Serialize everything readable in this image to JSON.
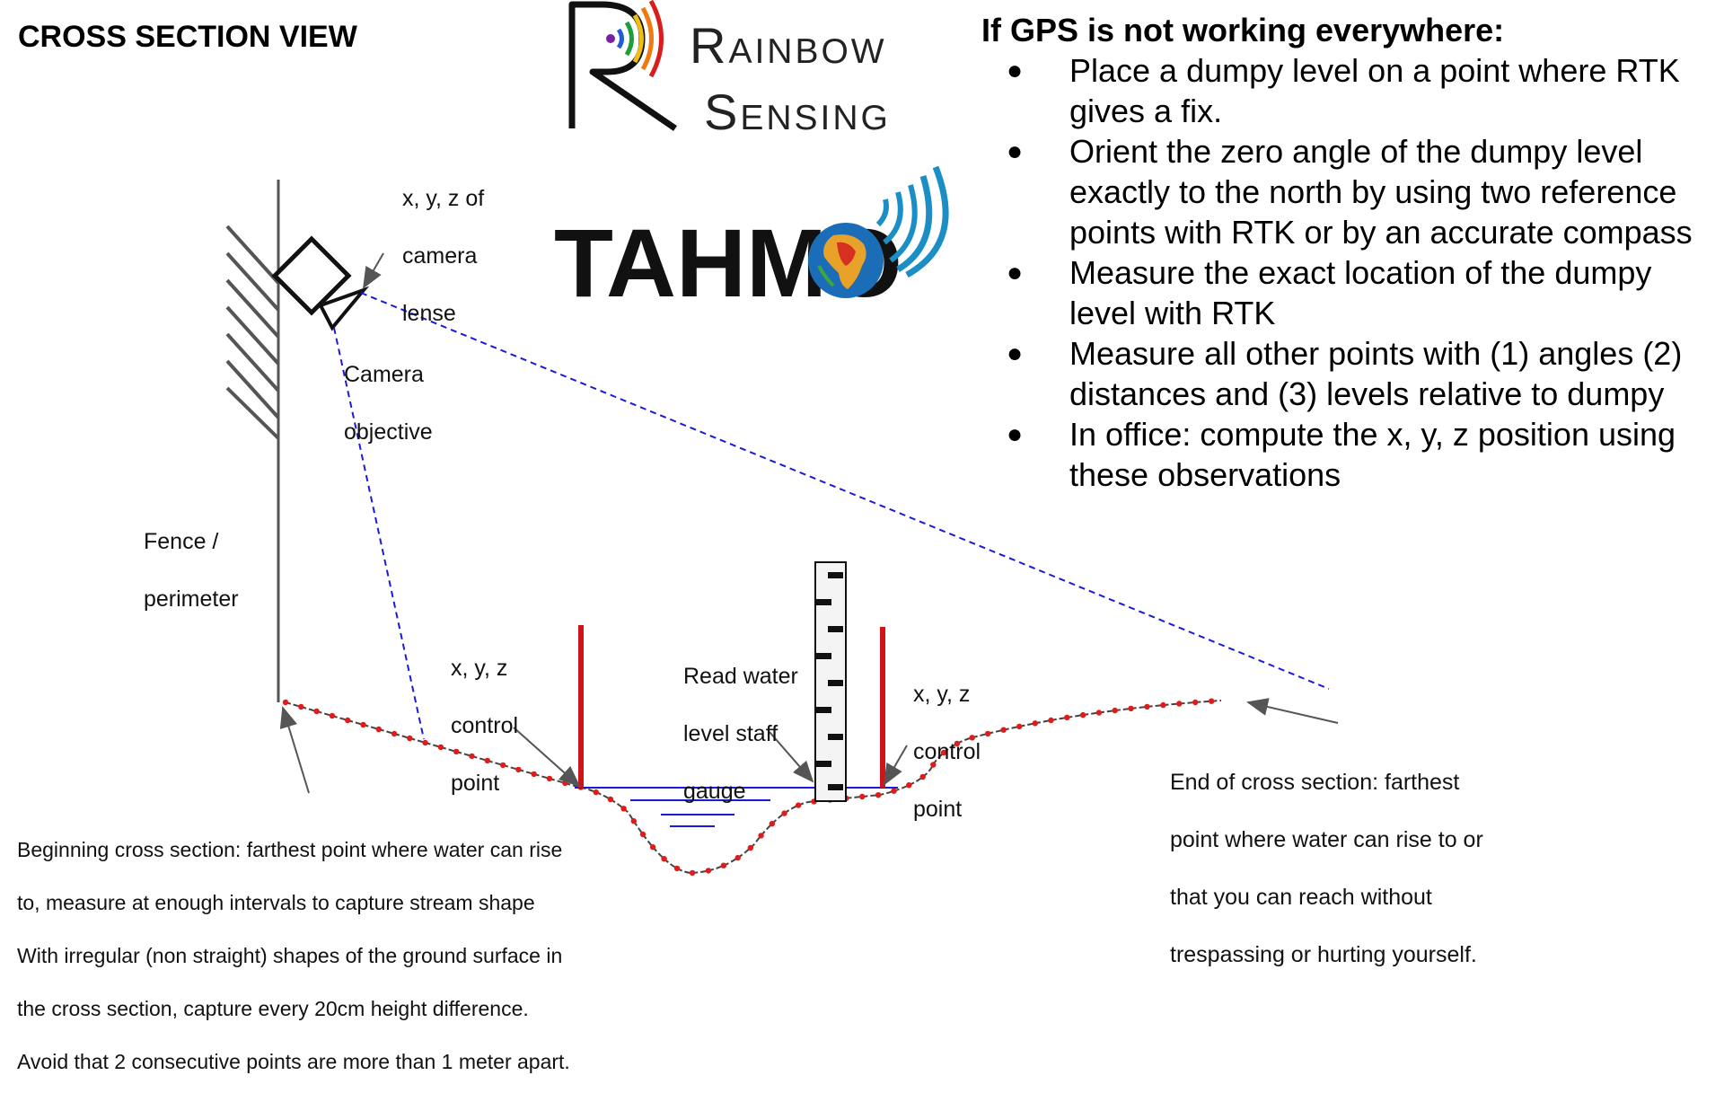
{
  "title": "CROSS SECTION VIEW",
  "logos": {
    "rainbow_line1": "Rainbow",
    "rainbow_line2": "Sensing",
    "tahmo": "TAHMO"
  },
  "gps_box": {
    "heading": "If GPS is not working everywhere:",
    "items": [
      "Place a dumpy level on a point where RTK gives a fix.",
      "Orient the zero angle of the dumpy level exactly to the north by using two reference points with RTK or by an accurate compass",
      "Measure the exact location of the dumpy level with RTK",
      "Measure all other points with (1) angles (2) distances and (3) levels relative to dumpy",
      "In office: compute the x, y, z position using these observations"
    ],
    "bullet_glyph": "●"
  },
  "labels": {
    "camera_lens": [
      "x, y, z of",
      "camera",
      "lense"
    ],
    "camera_objective": [
      "Camera",
      "objective"
    ],
    "fence": [
      "Fence /",
      "perimeter"
    ],
    "control_point_left": [
      "x, y, z",
      "control",
      "point"
    ],
    "staff_gauge": [
      "Read water",
      "level staff",
      "gauge"
    ],
    "control_point_right": [
      "x, y, z",
      "control",
      "point"
    ],
    "end_cross_section": [
      "End of cross section: farthest",
      "point where water can rise to or",
      "that you can reach without",
      "trespassing or hurting yourself."
    ],
    "beginning_cross_section": [
      "Beginning cross section: farthest point where water can rise",
      "to, measure at enough intervals to capture stream shape",
      "With irregular (non straight) shapes of the ground surface in",
      "the cross section, capture every 20cm height difference.",
      "Avoid that 2 consecutive points are more than 1 meter apart."
    ]
  },
  "colors": {
    "ground_line": "#444444",
    "survey_points": "#e01b1b",
    "control_posts": "#d0141c",
    "water": "#1a1adc",
    "sight_lines": "#1a1adc",
    "fence": "#555555"
  },
  "icons": [
    "camera-icon",
    "wifi-signal-icon",
    "africa-globe-icon"
  ]
}
